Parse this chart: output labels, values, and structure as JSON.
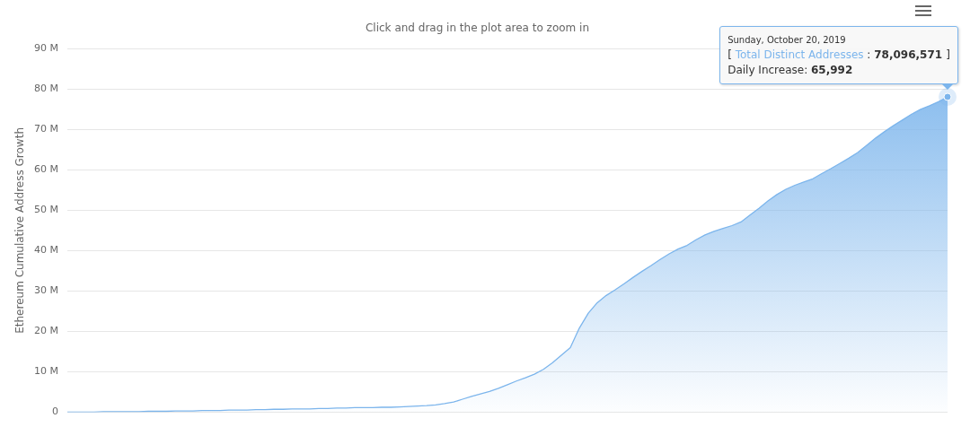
{
  "chart_data": {
    "type": "area",
    "subtitle": "Click and drag in the plot area to zoom in",
    "ylabel": "Ethereum Cumulative Address Growth",
    "categories": [
      null,
      null,
      null,
      null,
      null,
      null,
      null,
      null,
      null,
      null,
      null,
      null,
      null,
      null,
      null,
      null,
      null,
      null,
      null,
      null,
      null,
      null,
      null,
      null,
      null,
      null,
      null,
      null,
      null,
      null,
      null,
      null,
      null,
      null,
      null,
      null,
      null,
      null,
      null,
      null,
      null,
      null,
      null,
      null,
      null,
      null,
      null,
      null,
      null,
      null,
      null,
      null,
      null,
      null,
      null,
      null,
      null,
      null,
      null,
      null,
      null,
      null,
      null,
      null,
      null,
      null,
      null,
      null,
      null,
      null,
      null,
      null,
      null,
      null,
      null,
      null,
      null,
      null,
      null,
      null,
      null,
      null,
      null,
      null,
      null,
      null,
      null,
      null,
      null,
      null,
      null,
      null,
      null,
      null,
      null,
      null,
      null,
      null,
      null
    ],
    "values": [
      0,
      0,
      0,
      0,
      0.1,
      0.1,
      0.1,
      0.1,
      0.1,
      0.2,
      0.2,
      0.2,
      0.3,
      0.3,
      0.3,
      0.4,
      0.4,
      0.4,
      0.5,
      0.5,
      0.5,
      0.6,
      0.6,
      0.7,
      0.7,
      0.8,
      0.8,
      0.8,
      0.9,
      0.9,
      1.0,
      1.0,
      1.1,
      1.1,
      1.1,
      1.2,
      1.2,
      1.3,
      1.4,
      1.5,
      1.6,
      1.8,
      2.1,
      2.5,
      3.2,
      3.9,
      4.5,
      5.1,
      5.9,
      6.8,
      7.7,
      8.5,
      9.4,
      10.6,
      12.2,
      14.1,
      16.0,
      20.8,
      24.5,
      27.1,
      28.9,
      30.3,
      31.8,
      33.4,
      34.9,
      36.3,
      37.8,
      39.2,
      40.4,
      41.3,
      42.7,
      43.9,
      44.8,
      45.5,
      46.2,
      47.1,
      48.8,
      50.5,
      52.3,
      53.9,
      55.2,
      56.2,
      57.0,
      57.8,
      59.1,
      60.3,
      61.6,
      62.9,
      64.3,
      66.1,
      67.9,
      69.5,
      71.0,
      72.4,
      73.8,
      75.0,
      75.9,
      76.9,
      78.096571
    ],
    "color": "#7cb5ec",
    "ylim": [
      0,
      90
    ],
    "yticks": [
      0,
      {
        "value": 10,
        "label": "10 M"
      },
      {
        "value": 20,
        "label": "20 M"
      },
      {
        "value": 30,
        "label": "30 M"
      },
      {
        "value": 40,
        "label": "40 M"
      },
      {
        "value": 50,
        "label": "50 M"
      },
      {
        "value": 60,
        "label": "60 M"
      },
      {
        "value": 70,
        "label": "70 M"
      },
      {
        "value": 80,
        "label": "80 M"
      },
      {
        "value": 90,
        "label": "90 M"
      }
    ],
    "grid": "y",
    "marker": "none",
    "tick_labels": "y",
    "annotations": [
      "Sunday, October 20, 2019",
      "[ Total Distinct Addresses : 78,096,571 ]",
      "Daily Increase: 65,992"
    ]
  }
}
